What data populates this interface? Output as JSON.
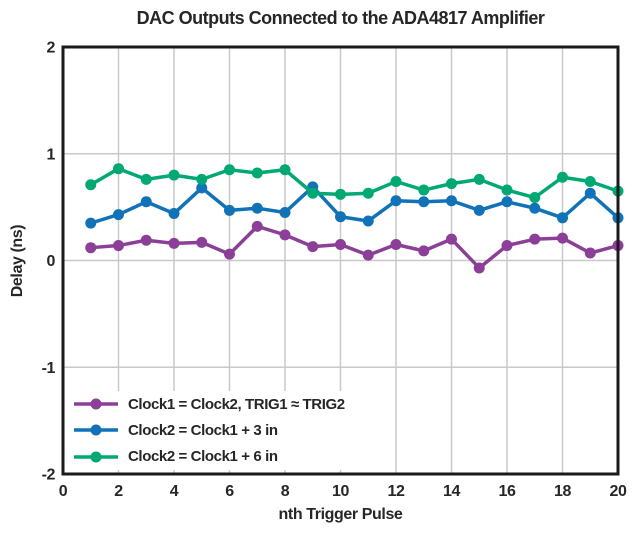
{
  "chart_data": {
    "type": "line",
    "title": "DAC Outputs Connected to the ADA4817 Amplifier",
    "xlabel": "nth Trigger Pulse",
    "ylabel": "Delay (ns)",
    "xlim": [
      0,
      20
    ],
    "ylim": [
      -2,
      2
    ],
    "x_ticks": [
      0,
      2,
      4,
      6,
      8,
      10,
      12,
      14,
      16,
      18,
      20
    ],
    "y_ticks": [
      2,
      1,
      0,
      -1,
      -2
    ],
    "grid": true,
    "legend_position": "lower-left",
    "x": [
      1,
      2,
      3,
      4,
      5,
      6,
      7,
      8,
      9,
      10,
      11,
      12,
      13,
      14,
      15,
      16,
      17,
      18,
      19,
      20
    ],
    "series": [
      {
        "name": "Clock1 = Clock2, TRIG1 ≈ TRIG2",
        "color": "#8B3F97",
        "values": [
          0.12,
          0.14,
          0.19,
          0.16,
          0.17,
          0.06,
          0.32,
          0.24,
          0.13,
          0.15,
          0.05,
          0.15,
          0.09,
          0.2,
          -0.07,
          0.14,
          0.2,
          0.21,
          0.07,
          0.14
        ]
      },
      {
        "name": "Clock2 = Clock1 + 3 in",
        "color": "#1172B8",
        "values": [
          0.35,
          0.43,
          0.55,
          0.44,
          0.68,
          0.47,
          0.49,
          0.45,
          0.69,
          0.41,
          0.37,
          0.56,
          0.55,
          0.56,
          0.47,
          0.55,
          0.49,
          0.4,
          0.63,
          0.4
        ]
      },
      {
        "name": "Clock2 = Clock1 + 6 in",
        "color": "#00A873",
        "values": [
          0.71,
          0.86,
          0.76,
          0.8,
          0.76,
          0.85,
          0.82,
          0.85,
          0.63,
          0.62,
          0.63,
          0.74,
          0.66,
          0.72,
          0.76,
          0.66,
          0.59,
          0.78,
          0.74,
          0.65
        ]
      }
    ],
    "colors": {
      "grid": "#C9C9C9",
      "frame": "#1A1A1A",
      "text": "#262626",
      "background": "#FFFFFF"
    }
  }
}
